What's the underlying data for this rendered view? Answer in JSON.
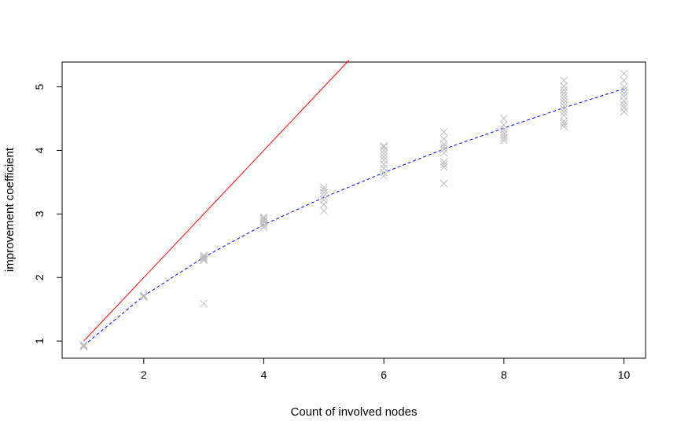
{
  "chart_data": {
    "type": "scatter",
    "title": "",
    "xlabel": "Count of involved nodes",
    "ylabel": "improvement coefficient",
    "xlim": [
      0.64,
      10.36
    ],
    "ylim": [
      0.73,
      5.39
    ],
    "x_ticks": [
      2,
      4,
      6,
      8,
      10
    ],
    "y_ticks": [
      1,
      2,
      3,
      4,
      5
    ],
    "grid": false,
    "legend": "none",
    "points": {
      "marker": "x",
      "color": "#bdbdbd",
      "data": [
        [
          1,
          0.92
        ],
        [
          1,
          0.93
        ],
        [
          1,
          0.94
        ],
        [
          1,
          0.91
        ],
        [
          2,
          1.69
        ],
        [
          2,
          1.71
        ],
        [
          2,
          1.72
        ],
        [
          2,
          1.7
        ],
        [
          3,
          2.27
        ],
        [
          3,
          2.29
        ],
        [
          3,
          2.31
        ],
        [
          3,
          2.33
        ],
        [
          3,
          2.35
        ],
        [
          3,
          1.59
        ],
        [
          4,
          2.79
        ],
        [
          4,
          2.82
        ],
        [
          4,
          2.85
        ],
        [
          4,
          2.88
        ],
        [
          4,
          2.9
        ],
        [
          4,
          2.93
        ],
        [
          4,
          2.95
        ],
        [
          5,
          3.05
        ],
        [
          5,
          3.15
        ],
        [
          5,
          3.22
        ],
        [
          5,
          3.28
        ],
        [
          5,
          3.33
        ],
        [
          5,
          3.38
        ],
        [
          5,
          3.42
        ],
        [
          6,
          3.6
        ],
        [
          6,
          3.65
        ],
        [
          6,
          3.72
        ],
        [
          6,
          3.78
        ],
        [
          6,
          3.85
        ],
        [
          6,
          3.9
        ],
        [
          6,
          3.95
        ],
        [
          6,
          4.0
        ],
        [
          6,
          4.05
        ],
        [
          6,
          4.07
        ],
        [
          7,
          3.48
        ],
        [
          7,
          3.74
        ],
        [
          7,
          3.78
        ],
        [
          7,
          3.82
        ],
        [
          7,
          3.96
        ],
        [
          7,
          4.02
        ],
        [
          7,
          4.06
        ],
        [
          7,
          4.1
        ],
        [
          7,
          4.18
        ],
        [
          7,
          4.29
        ],
        [
          8,
          4.16
        ],
        [
          8,
          4.2
        ],
        [
          8,
          4.24
        ],
        [
          8,
          4.28
        ],
        [
          8,
          4.33
        ],
        [
          8,
          4.4
        ],
        [
          8,
          4.5
        ],
        [
          9,
          4.38
        ],
        [
          9,
          4.42
        ],
        [
          9,
          4.46
        ],
        [
          9,
          4.55
        ],
        [
          9,
          4.6
        ],
        [
          9,
          4.65
        ],
        [
          9,
          4.7
        ],
        [
          9,
          4.75
        ],
        [
          9,
          4.8
        ],
        [
          9,
          4.85
        ],
        [
          9,
          4.9
        ],
        [
          9,
          4.95
        ],
        [
          9,
          5.01
        ],
        [
          9,
          5.1
        ],
        [
          10,
          4.61
        ],
        [
          10,
          4.67
        ],
        [
          10,
          4.72
        ],
        [
          10,
          4.78
        ],
        [
          10,
          4.85
        ],
        [
          10,
          4.9
        ],
        [
          10,
          4.95
        ],
        [
          10,
          5.0
        ],
        [
          10,
          5.1
        ],
        [
          10,
          5.21
        ]
      ]
    },
    "series": [
      {
        "line_style": "solid",
        "color": "#ff0000",
        "x": [
          1,
          5.42
        ],
        "y": [
          1,
          5.42
        ]
      },
      {
        "line_style": "dashed",
        "color": "#0000ff",
        "x": [
          1,
          2,
          3,
          4,
          5,
          6,
          7,
          8,
          9,
          10
        ],
        "y": [
          0.93,
          1.71,
          2.32,
          2.83,
          3.26,
          3.65,
          4.02,
          4.35,
          4.67,
          4.97
        ]
      }
    ]
  }
}
